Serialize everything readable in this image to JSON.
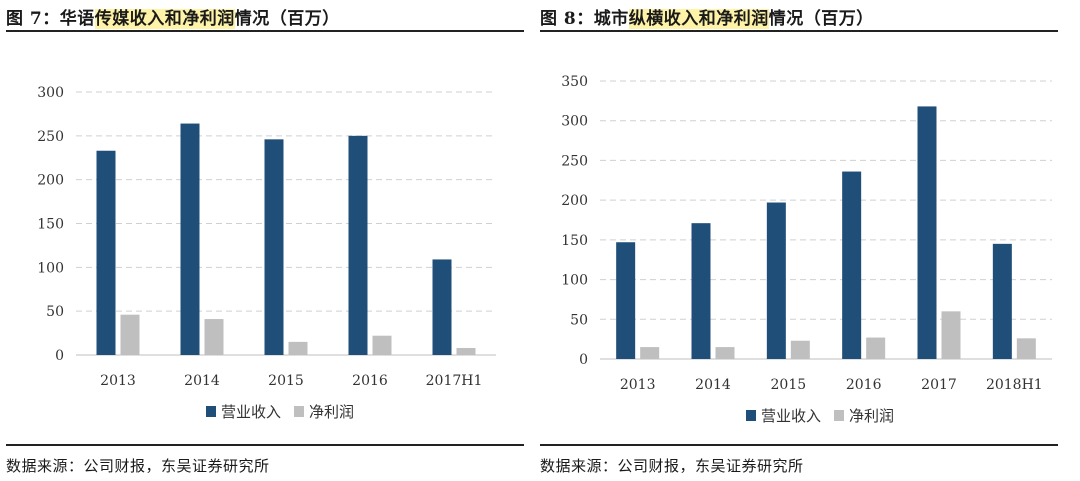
{
  "panels": [
    {
      "title_prefix": "图 7：华语",
      "title_highlight": "传媒收入和净利润",
      "title_suffix": "情况（百万）",
      "source": "数据来源：公司财报，东吴证券研究所"
    },
    {
      "title_prefix": "图 8：城市",
      "title_highlight": "纵横收入和净利润",
      "title_suffix": "情况（百万）",
      "source": "数据来源：公司财报，东吴证券研究所"
    }
  ],
  "chart_data": [
    {
      "type": "bar",
      "categories": [
        "2013",
        "2014",
        "2015",
        "2016",
        "2017H1"
      ],
      "series": [
        {
          "name": "营业收入",
          "values": [
            233,
            264,
            246,
            250,
            109
          ],
          "color": "#1f4e79"
        },
        {
          "name": "净利润",
          "values": [
            46,
            41,
            15,
            22,
            8
          ],
          "color": "#bfbfbf"
        }
      ],
      "yticks": [
        "0",
        "50",
        "100",
        "150",
        "200",
        "250",
        "300"
      ],
      "ylim": [
        0,
        300
      ],
      "grid": true,
      "legend": "bottom-center"
    },
    {
      "type": "bar",
      "categories": [
        "2013",
        "2014",
        "2015",
        "2016",
        "2017",
        "2018H1"
      ],
      "series": [
        {
          "name": "营业收入",
          "values": [
            147,
            171,
            197,
            236,
            318,
            145
          ],
          "color": "#1f4e79"
        },
        {
          "name": "净利润",
          "values": [
            15,
            15,
            23,
            27,
            60,
            26
          ],
          "color": "#bfbfbf"
        }
      ],
      "yticks": [
        "0",
        "50",
        "100",
        "150",
        "200",
        "250",
        "300",
        "350"
      ],
      "ylim": [
        0,
        350
      ],
      "grid": true,
      "legend": "bottom-center"
    }
  ]
}
